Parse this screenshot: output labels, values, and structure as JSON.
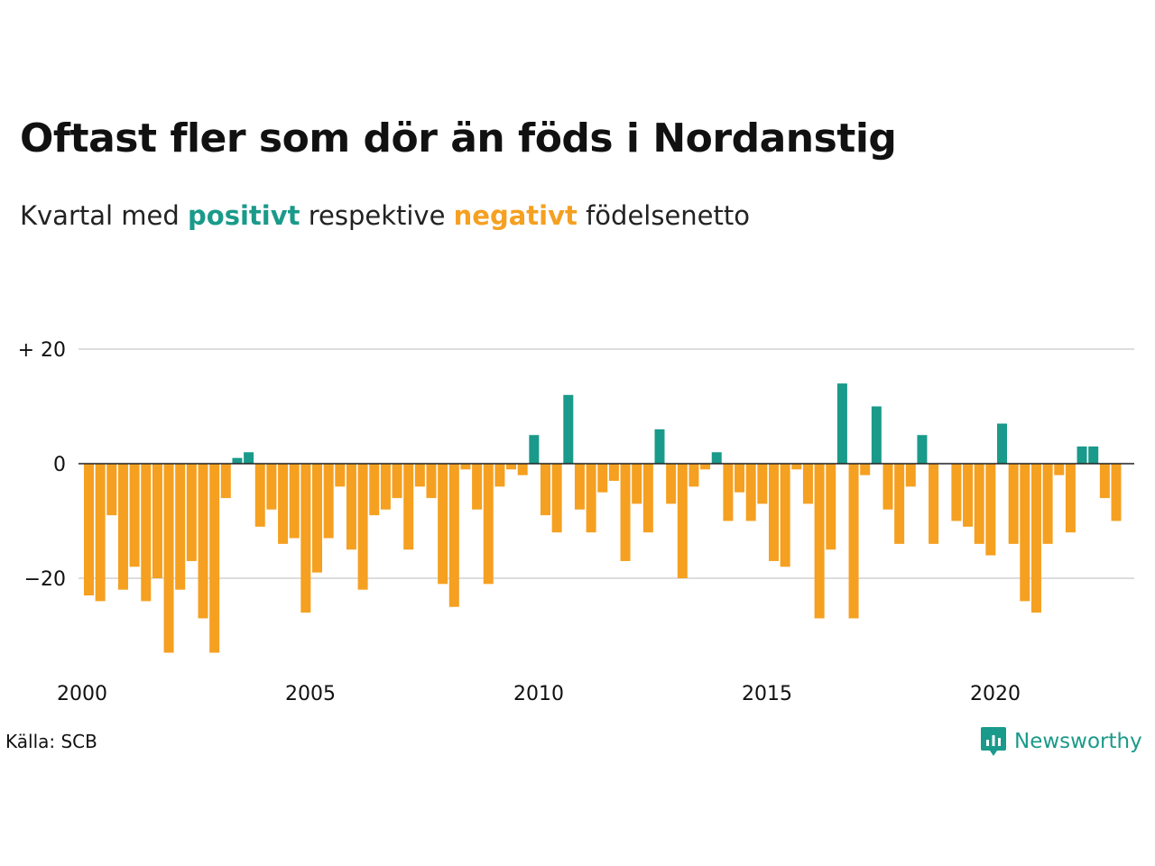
{
  "header": {
    "title": "Oftast fler som dör än föds i Nordanstig",
    "subtitle_prefix": "Kvartal med",
    "subtitle_positive": "positivt",
    "subtitle_middle": "respektive",
    "subtitle_negative": "negativt",
    "subtitle_suffix": "födelsenetto"
  },
  "footer": {
    "source": "Källa: SCB",
    "brand": "Newsworthy"
  },
  "colors": {
    "positive": "#1a9a8a",
    "negative": "#f5a020",
    "grid": "#dddddd",
    "zero_line": "#222222"
  },
  "chart_data": {
    "type": "bar",
    "x_start": "2000 Q1",
    "series": [
      {
        "values": [
          -23,
          -24,
          -9,
          -22,
          -18,
          -24,
          -20,
          -33,
          -22,
          -17,
          -27,
          -33,
          -6,
          1,
          2,
          -11,
          -8,
          -14,
          -13,
          -26,
          -19,
          -13,
          -4,
          -15,
          -22,
          -9,
          -8,
          -6,
          -15,
          -4,
          -6,
          -21,
          -25,
          -1,
          -8,
          -21,
          -4,
          -1,
          -2,
          5,
          -9,
          -12,
          12,
          -8,
          -12,
          -5,
          -3,
          -17,
          -7,
          -12,
          6,
          -7,
          -20,
          -4,
          -1,
          2,
          -10,
          -5,
          -10,
          -7,
          -17,
          -18,
          -1,
          -7,
          -27,
          -15,
          14,
          -27,
          -2,
          10,
          -8,
          -14,
          -4,
          5,
          -14,
          0,
          -10,
          -11,
          -14,
          -16,
          7,
          -14,
          -24,
          -26,
          -14,
          -2,
          -12,
          3,
          3,
          -6,
          -10
        ]
      }
    ],
    "xlim": [
      "2000 Q1",
      "2022 Q3"
    ],
    "x_ticks": [
      "2000",
      "2005",
      "2010",
      "2015",
      "2020"
    ],
    "ylim": [
      -35,
      25
    ],
    "y_ticks": [
      {
        "value": 20,
        "label": "+ 20"
      },
      {
        "value": 0,
        "label": "0"
      },
      {
        "value": -20,
        "label": "−20"
      }
    ],
    "grid": true
  }
}
